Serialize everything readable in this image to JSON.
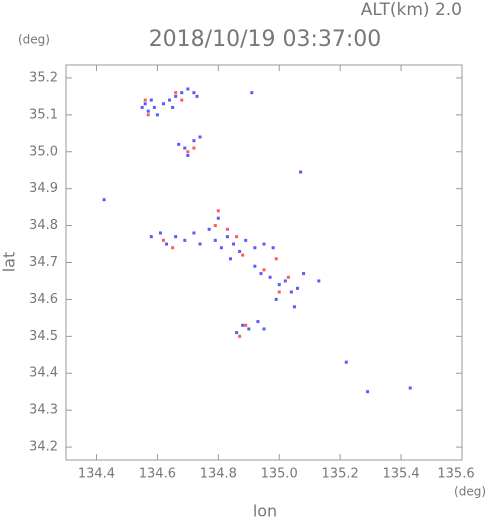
{
  "chart_data": {
    "type": "scatter",
    "title": "2018/10/19 03:37:00",
    "subtitle": "ALT(km) 2.0",
    "x_label": "lon",
    "y_label": "lat",
    "x_unit": "(deg)",
    "y_unit": "(deg)",
    "xlim": [
      134.3,
      135.6
    ],
    "ylim": [
      34.165,
      35.235
    ],
    "xticks": [
      134.4,
      134.6,
      134.8,
      {
        "value": 135.0,
        "label": "135.0"
      },
      135.2,
      135.4,
      135.6
    ],
    "yticks": [
      34.2,
      34.3,
      34.4,
      34.5,
      34.6,
      34.7,
      34.8,
      34.9,
      {
        "value": 35.0,
        "label": "35.0"
      },
      35.1,
      35.2
    ],
    "series": [
      {
        "color": "#3030ff",
        "x": [
          134.56,
          134.57,
          134.58,
          134.59,
          134.62,
          134.64,
          134.66,
          134.68,
          134.7,
          134.72,
          134.73,
          134.6,
          134.65,
          134.55,
          134.67,
          134.69,
          134.7,
          134.72,
          134.74,
          134.58,
          134.61,
          134.63,
          134.66,
          134.69,
          134.72,
          134.74,
          134.77,
          134.79,
          134.81,
          134.83,
          134.85,
          134.87,
          134.89,
          134.92,
          134.95,
          134.98,
          134.8,
          134.84,
          134.92,
          134.94,
          134.97,
          135.0,
          135.02,
          135.04,
          135.06,
          134.99,
          135.05,
          135.08,
          134.86,
          134.88,
          134.9,
          134.93,
          134.95,
          134.425,
          135.07,
          135.43,
          135.29,
          135.13,
          134.91,
          135.22
        ],
        "y": [
          35.13,
          35.11,
          35.14,
          35.12,
          35.13,
          35.14,
          35.15,
          35.16,
          35.17,
          35.16,
          35.15,
          35.1,
          35.12,
          35.12,
          35.02,
          35.01,
          34.99,
          35.03,
          35.04,
          34.77,
          34.78,
          34.75,
          34.77,
          34.76,
          34.78,
          34.75,
          34.79,
          34.76,
          34.74,
          34.77,
          34.75,
          34.73,
          34.76,
          34.74,
          34.75,
          34.74,
          34.82,
          34.71,
          34.69,
          34.67,
          34.66,
          34.64,
          34.65,
          34.62,
          34.63,
          34.6,
          34.58,
          34.67,
          34.51,
          34.53,
          34.52,
          34.54,
          34.52,
          34.87,
          34.945,
          34.36,
          34.35,
          34.65,
          35.16,
          34.43
        ]
      },
      {
        "color": "#ff3030",
        "x": [
          134.56,
          134.57,
          134.66,
          134.68,
          134.7,
          134.62,
          134.65,
          134.79,
          134.8,
          134.83,
          134.86,
          134.88,
          134.95,
          135.0,
          134.99,
          134.87,
          134.89,
          135.03,
          134.72
        ],
        "y": [
          35.14,
          35.1,
          35.16,
          35.14,
          35.0,
          34.76,
          34.74,
          34.8,
          34.84,
          34.79,
          34.77,
          34.72,
          34.68,
          34.62,
          34.71,
          34.5,
          34.53,
          34.66,
          35.01
        ]
      }
    ]
  }
}
